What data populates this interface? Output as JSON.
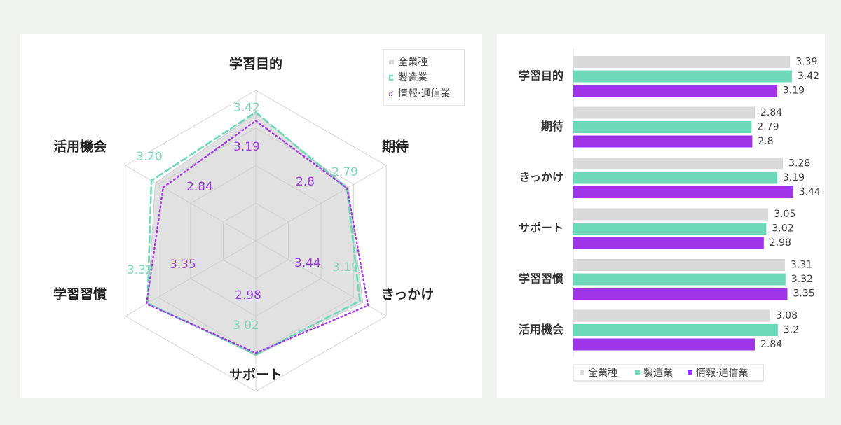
{
  "colors": {
    "all_industries": "#d9d9d9",
    "manufacturing": "#6dd9b8",
    "info_comm": "#a034e8",
    "radar_label_mfg": "#7fd6ba",
    "radar_label_info": "#9a3bdc",
    "grid": "#d6d6d6",
    "text": "#222222",
    "value_text": "#404040"
  },
  "legend": [
    "全業種",
    "製造業",
    "情報·通信業"
  ],
  "chart_data": [
    {
      "type": "radar",
      "axes": [
        "学習目的",
        "期待",
        "きっかけ",
        "サポート",
        "学習習慣",
        "活用機会"
      ],
      "series": [
        {
          "name": "全業種",
          "values": [
            3.39,
            2.84,
            3.28,
            3.05,
            3.31,
            3.08
          ]
        },
        {
          "name": "製造業",
          "values": [
            3.42,
            2.79,
            3.19,
            3.02,
            3.32,
            3.2
          ]
        },
        {
          "name": "情報·通信業",
          "values": [
            3.19,
            2.8,
            3.44,
            2.98,
            3.35,
            2.84
          ]
        }
      ],
      "value_labels": {
        "製造業": [
          "3.42",
          "2.79",
          "3.19",
          "3.02",
          "3.32",
          "3.20"
        ],
        "情報·通信業": [
          "3.19",
          "2.8",
          "3.44",
          "2.98",
          "3.35",
          "2.84"
        ]
      },
      "rlim": [
        0,
        4
      ],
      "rings": [
        1,
        2,
        3,
        4
      ],
      "legend_position": "top-right"
    },
    {
      "type": "bar",
      "orientation": "horizontal",
      "categories": [
        "学習目的",
        "期待",
        "きっかけ",
        "サポート",
        "学習習慣",
        "活用機会"
      ],
      "series": [
        {
          "name": "全業種",
          "values": [
            3.39,
            2.84,
            3.28,
            3.05,
            3.31,
            3.08
          ],
          "labels": [
            "3.39",
            "2.84",
            "3.28",
            "3.05",
            "3.31",
            "3.08"
          ]
        },
        {
          "name": "製造業",
          "values": [
            3.42,
            2.79,
            3.19,
            3.02,
            3.32,
            3.2
          ],
          "labels": [
            "3.42",
            "2.79",
            "3.19",
            "3.02",
            "3.32",
            "3.2"
          ]
        },
        {
          "name": "情報·通信業",
          "values": [
            3.19,
            2.8,
            3.44,
            2.98,
            3.35,
            2.84
          ],
          "labels": [
            "3.19",
            "2.8",
            "3.44",
            "2.98",
            "3.35",
            "2.84"
          ]
        }
      ],
      "xlim": [
        0,
        3.44
      ],
      "legend_position": "bottom"
    }
  ]
}
